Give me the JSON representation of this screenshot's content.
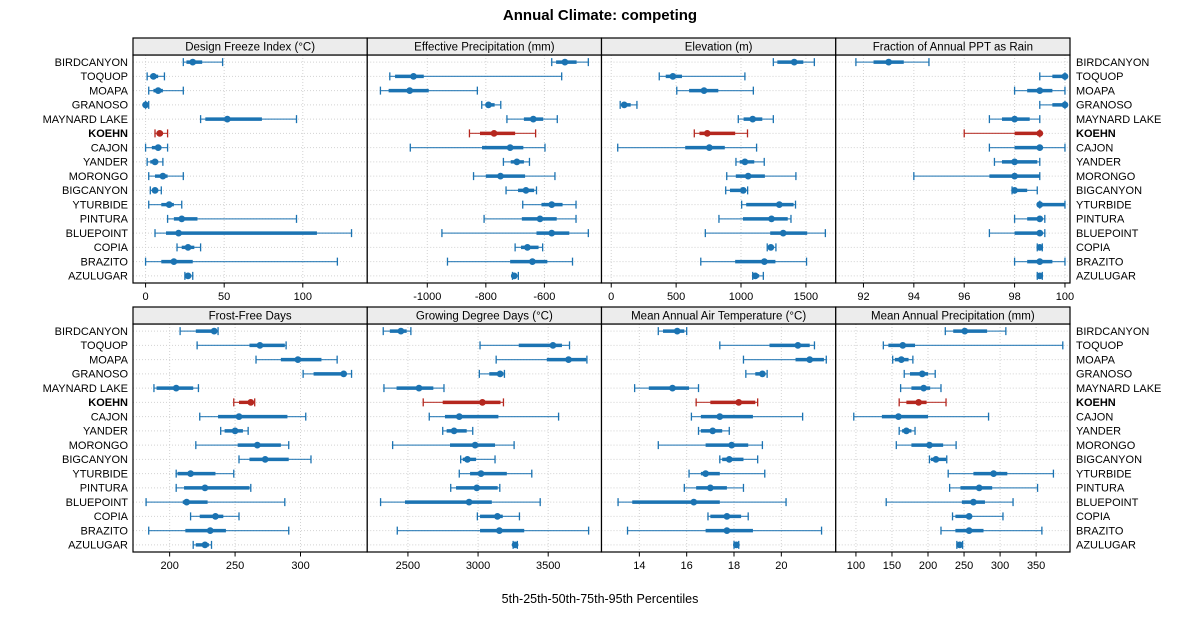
{
  "title": "Annual Climate: competing",
  "caption": "5th-25th-50th-75th-95th Percentiles",
  "colors": {
    "series": "#1b73b2",
    "highlight": "#b5271f",
    "strip_bg": "#ececec",
    "panel_border": "#000000",
    "grid": "#d2d2d2",
    "background": "#ffffff"
  },
  "chart_data": {
    "type": "scatter",
    "subtype": "trellis-horizontal-percentile-dotplot",
    "title": "Annual Climate: competing",
    "xlabel": "5th-25th-50th-75th-95th Percentiles",
    "legend_position": "none",
    "grid": "dotted",
    "percentile_labels": [
      "5th",
      "25th",
      "50th",
      "75th",
      "95th"
    ],
    "highlight_site": "KOEHN",
    "sites": [
      "BIRDCANYON",
      "TOQUOP",
      "MOAPA",
      "GRANOSO",
      "MAYNARD LAKE",
      "KOEHN",
      "CAJON",
      "YANDER",
      "MORONGO",
      "BIGCANYON",
      "YTURBIDE",
      "PINTURA",
      "BLUEPOINT",
      "COPIA",
      "BRAZITO",
      "AZULUGAR"
    ],
    "panels": [
      {
        "title": "Design Freeze Index (°C)",
        "xticks": [
          0,
          50,
          100
        ],
        "xlim": [
          -8,
          141
        ],
        "values": [
          [
            24,
            26,
            30,
            36,
            49
          ],
          [
            1,
            3,
            5,
            8,
            12
          ],
          [
            2,
            5,
            8,
            11,
            24
          ],
          [
            0,
            0,
            0,
            1,
            2
          ],
          [
            35,
            38,
            52,
            74,
            96
          ],
          [
            6,
            7,
            9,
            11,
            14
          ],
          [
            0,
            4,
            8,
            10,
            14
          ],
          [
            1,
            3,
            6,
            8,
            11
          ],
          [
            2,
            6,
            11,
            14,
            24
          ],
          [
            3,
            5,
            6,
            8,
            10
          ],
          [
            2,
            10,
            15,
            18,
            23
          ],
          [
            14,
            18,
            23,
            33,
            96
          ],
          [
            6,
            13,
            21,
            109,
            131
          ],
          [
            20,
            23,
            27,
            31,
            35
          ],
          [
            0,
            10,
            18,
            30,
            122
          ],
          [
            25,
            26,
            27,
            29,
            30
          ]
        ]
      },
      {
        "title": "Effective Precipitation (mm)",
        "xticks": [
          -1000,
          -800,
          -600
        ],
        "xlim": [
          -1205,
          -405
        ],
        "values": [
          [
            -575,
            -560,
            -530,
            -490,
            -450
          ],
          [
            -1128,
            -1110,
            -1047,
            -1012,
            -541
          ],
          [
            -1160,
            -1132,
            -1060,
            -995,
            -829
          ],
          [
            -814,
            -800,
            -791,
            -770,
            -749
          ],
          [
            -728,
            -670,
            -638,
            -604,
            -556
          ],
          [
            -856,
            -820,
            -772,
            -700,
            -630
          ],
          [
            -1058,
            -813,
            -717,
            -672,
            -598
          ],
          [
            -740,
            -715,
            -694,
            -670,
            -651
          ],
          [
            -842,
            -800,
            -750,
            -666,
            -564
          ],
          [
            -731,
            -690,
            -663,
            -635,
            -627
          ],
          [
            -674,
            -610,
            -575,
            -538,
            -492
          ],
          [
            -806,
            -677,
            -615,
            -558,
            -492
          ],
          [
            -950,
            -627,
            -575,
            -515,
            -450
          ],
          [
            -700,
            -680,
            -658,
            -620,
            -606
          ],
          [
            -931,
            -717,
            -641,
            -590,
            -504
          ],
          [
            -709,
            -706,
            -703,
            -695,
            -689
          ]
        ]
      },
      {
        "title": "Elevation (m)",
        "xticks": [
          0,
          500,
          1000,
          1500
        ],
        "xlim": [
          -75,
          1730
        ],
        "values": [
          [
            1249,
            1280,
            1410,
            1480,
            1565
          ],
          [
            370,
            420,
            475,
            545,
            1030
          ],
          [
            505,
            600,
            715,
            825,
            1095
          ],
          [
            69,
            85,
            100,
            150,
            198
          ],
          [
            979,
            1020,
            1090,
            1164,
            1249
          ],
          [
            640,
            680,
            740,
            955,
            1050
          ],
          [
            50,
            570,
            756,
            875,
            1120
          ],
          [
            961,
            990,
            1030,
            1102,
            1179
          ],
          [
            890,
            960,
            1055,
            1184,
            1423
          ],
          [
            882,
            915,
            1017,
            1036,
            1051
          ],
          [
            1005,
            1040,
            1295,
            1405,
            1420
          ],
          [
            830,
            1015,
            1235,
            1360,
            1385
          ],
          [
            725,
            1225,
            1325,
            1510,
            1650
          ],
          [
            1202,
            1215,
            1230,
            1250,
            1269
          ],
          [
            690,
            955,
            1180,
            1265,
            1505
          ],
          [
            1090,
            1100,
            1110,
            1140,
            1172
          ]
        ]
      },
      {
        "title": "Fraction of Annual PPT as Rain",
        "xticks": [
          92,
          94,
          96,
          98,
          100
        ],
        "xlim": [
          90.9,
          100.2
        ],
        "values": [
          [
            91.7,
            92.4,
            93.0,
            93.6,
            94.6
          ],
          [
            99.0,
            99.5,
            100.0,
            100.0,
            100.0
          ],
          [
            98.0,
            98.5,
            99.0,
            99.5,
            100.0
          ],
          [
            99.0,
            99.5,
            100.0,
            100.0,
            100.0
          ],
          [
            97.0,
            97.5,
            98.0,
            98.6,
            99.0
          ],
          [
            96.0,
            98.0,
            99.0,
            99.0,
            99.0
          ],
          [
            97.0,
            98.0,
            99.0,
            99.1,
            100.0
          ],
          [
            97.2,
            97.5,
            98.0,
            98.9,
            99.0
          ],
          [
            94.0,
            97.0,
            98.0,
            99.0,
            99.0
          ],
          [
            97.9,
            98.0,
            98.0,
            98.5,
            98.9
          ],
          [
            99.0,
            99.0,
            99.0,
            100.0,
            100.0
          ],
          [
            98.0,
            98.5,
            99.0,
            99.1,
            99.2
          ],
          [
            97.0,
            98.0,
            99.0,
            99.1,
            99.2
          ],
          [
            98.9,
            99.0,
            99.0,
            99.0,
            99.1
          ],
          [
            98.0,
            98.5,
            99.0,
            99.5,
            100.0
          ],
          [
            98.9,
            99.0,
            99.0,
            99.0,
            99.1
          ]
        ]
      },
      {
        "title": "Frost-Free Days",
        "xticks": [
          200,
          250,
          300
        ],
        "xlim": [
          172,
          351
        ],
        "values": [
          [
            208,
            220,
            234,
            236,
            237
          ],
          [
            221,
            261,
            269,
            288,
            289
          ],
          [
            266,
            285,
            298,
            316,
            328
          ],
          [
            302,
            310,
            333,
            335,
            339
          ],
          [
            188,
            190,
            205,
            218,
            222
          ],
          [
            249,
            253,
            262,
            264,
            265
          ],
          [
            223,
            237,
            253,
            290,
            304
          ],
          [
            239,
            242,
            250,
            256,
            260
          ],
          [
            220,
            252,
            267,
            285,
            291
          ],
          [
            253,
            261,
            273,
            291,
            308
          ],
          [
            205,
            206,
            216,
            235,
            249
          ],
          [
            205,
            211,
            227,
            261,
            262
          ],
          [
            182,
            210,
            213,
            229,
            288
          ],
          [
            216,
            223,
            235,
            241,
            253
          ],
          [
            184,
            212,
            231,
            243,
            291
          ],
          [
            218,
            220,
            227,
            230,
            232
          ]
        ]
      },
      {
        "title": "Growing Degree Days (°C)",
        "xticks": [
          2500,
          3000,
          3500
        ],
        "xlim": [
          2210,
          3880
        ],
        "values": [
          [
            2324,
            2371,
            2450,
            2491,
            2521
          ],
          [
            3014,
            3290,
            3534,
            3598,
            3652
          ],
          [
            3129,
            3490,
            3645,
            3771,
            3776
          ],
          [
            3009,
            3080,
            3157,
            3181,
            3188
          ],
          [
            2329,
            2419,
            2579,
            2681,
            2757
          ],
          [
            2609,
            2748,
            3031,
            3160,
            3181
          ],
          [
            2652,
            2764,
            2866,
            3145,
            3574
          ],
          [
            2748,
            2776,
            2829,
            2919,
            2962
          ],
          [
            2391,
            2800,
            2979,
            3121,
            3257
          ],
          [
            2876,
            2891,
            2924,
            2986,
            3121
          ],
          [
            2866,
            2943,
            3021,
            3205,
            3383
          ],
          [
            2805,
            2843,
            2991,
            3140,
            3155
          ],
          [
            2305,
            2479,
            2936,
            3098,
            3443
          ],
          [
            2995,
            3014,
            3138,
            3176,
            3295
          ],
          [
            2424,
            3014,
            3152,
            3329,
            3788
          ],
          [
            3250,
            3258,
            3264,
            3270,
            3280
          ]
        ]
      },
      {
        "title": "Mean Annual Air Temperature (°C)",
        "xticks": [
          14,
          16,
          18,
          20
        ],
        "xlim": [
          12.4,
          22.3
        ],
        "values": [
          [
            14.8,
            15.0,
            15.6,
            15.9,
            16.0
          ],
          [
            17.4,
            19.5,
            20.7,
            21.2,
            21.4
          ],
          [
            18.4,
            20.6,
            21.2,
            21.8,
            21.9
          ],
          [
            18.5,
            18.9,
            19.2,
            19.3,
            19.4
          ],
          [
            13.8,
            14.4,
            15.4,
            16.1,
            16.5
          ],
          [
            16.4,
            17.0,
            18.2,
            18.9,
            19.0
          ],
          [
            16.2,
            16.6,
            17.4,
            18.8,
            20.9
          ],
          [
            16.5,
            16.6,
            17.1,
            17.5,
            17.8
          ],
          [
            14.8,
            16.8,
            17.9,
            18.6,
            19.2
          ],
          [
            17.4,
            17.5,
            17.8,
            18.4,
            19.0
          ],
          [
            16.1,
            16.6,
            16.8,
            17.4,
            19.3
          ],
          [
            15.9,
            16.4,
            17.0,
            17.7,
            18.4
          ],
          [
            13.1,
            13.7,
            16.3,
            17.4,
            20.2
          ],
          [
            16.9,
            17.0,
            17.7,
            18.3,
            18.6
          ],
          [
            13.5,
            16.8,
            17.7,
            18.8,
            21.7
          ],
          [
            18.0,
            18.05,
            18.1,
            18.15,
            18.2
          ]
        ]
      },
      {
        "title": "Mean Annual Precipitation (mm)",
        "xticks": [
          100,
          150,
          200,
          250,
          300,
          350
        ],
        "xlim": [
          72,
          397
        ],
        "values": [
          [
            224,
            235,
            251,
            282,
            308
          ],
          [
            138,
            145,
            165,
            182,
            387
          ],
          [
            151,
            154,
            163,
            173,
            179
          ],
          [
            167,
            175,
            192,
            200,
            210
          ],
          [
            162,
            177,
            194,
            203,
            218
          ],
          [
            160,
            170,
            187,
            198,
            225
          ],
          [
            97,
            136,
            159,
            200,
            284
          ],
          [
            160,
            164,
            170,
            177,
            182
          ],
          [
            156,
            177,
            202,
            221,
            239
          ],
          [
            202,
            204,
            211,
            225,
            226
          ],
          [
            228,
            263,
            291,
            310,
            374
          ],
          [
            230,
            245,
            271,
            289,
            352
          ],
          [
            142,
            247,
            263,
            279,
            318
          ],
          [
            234,
            238,
            257,
            259,
            304
          ],
          [
            218,
            238,
            257,
            277,
            358
          ],
          [
            240,
            242,
            244,
            246,
            248
          ]
        ]
      }
    ]
  }
}
